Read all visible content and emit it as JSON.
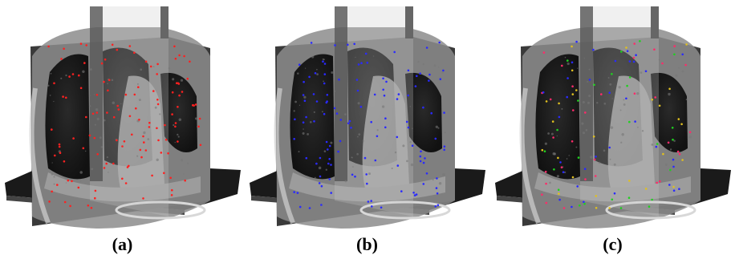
{
  "figure": {
    "panels": [
      {
        "id": "a",
        "caption": "(a)",
        "marker_colors": [
          "#ff2020"
        ]
      },
      {
        "id": "b",
        "caption": "(b)",
        "marker_colors": [
          "#2a2aff"
        ]
      },
      {
        "id": "c",
        "caption": "(c)",
        "marker_colors": [
          "#ff2a6a",
          "#2a2aff",
          "#1fd11f",
          "#e0c020"
        ]
      }
    ]
  }
}
